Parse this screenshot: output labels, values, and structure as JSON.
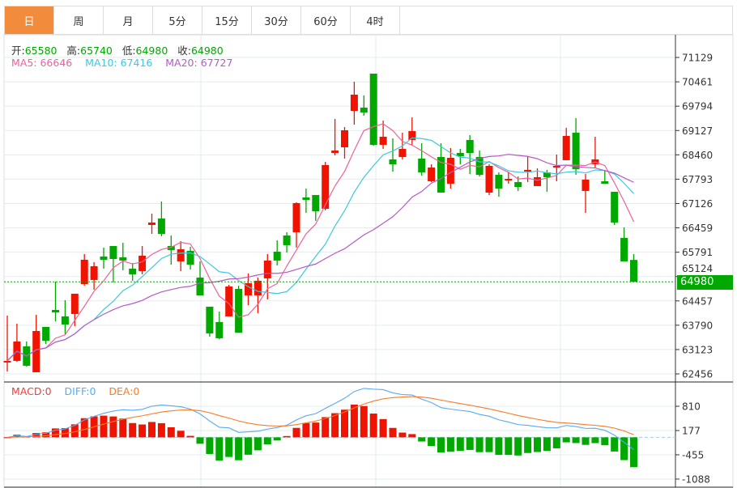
{
  "tabs": [
    {
      "label": "日",
      "active": true
    },
    {
      "label": "周"
    },
    {
      "label": "月"
    },
    {
      "label": "5分"
    },
    {
      "label": "15分"
    },
    {
      "label": "30分"
    },
    {
      "label": "60分"
    },
    {
      "label": "4时"
    }
  ],
  "ohlc": {
    "open_label": "开:",
    "open": "65580",
    "high_label": "高:",
    "high": "65740",
    "low_label": "低:",
    "low": "64980",
    "close_label": "收:",
    "close": "64980"
  },
  "ma": {
    "ma5": "MA5: 66646",
    "ma10": "MA10: 67416",
    "ma20": "MA20: 67727"
  },
  "macd_legend": {
    "macd": "MACD:0",
    "diff": "DIFF:0",
    "dea": "DEA:0"
  },
  "current_price": "64980",
  "colors": {
    "up": "#f01400",
    "down": "#00a800",
    "ma5": "#f0609a",
    "ma10": "#3cc8dc",
    "ma20": "#b45ac8",
    "diff": "#5aaaf0",
    "dea": "#f57c28",
    "accent": "#f28c3c"
  },
  "chart_data": {
    "type": "candlestick",
    "price_axis": {
      "ticks": [
        71129,
        70461,
        69794,
        69127,
        68460,
        67793,
        67126,
        66459,
        65791,
        65124,
        64457,
        63790,
        63123,
        62456
      ],
      "range": [
        62456,
        71129
      ]
    },
    "macd_axis": {
      "ticks": [
        810,
        177,
        -455,
        -1088
      ]
    },
    "candles": [
      [
        62790,
        62812,
        64054,
        62523
      ],
      [
        62812,
        63344,
        63832,
        62790
      ],
      [
        63211,
        62679,
        63344,
        62657
      ],
      [
        62501,
        63632,
        64076,
        62501
      ],
      [
        63743,
        63366,
        63743,
        63277
      ],
      [
        64209,
        64142,
        64985,
        63899
      ],
      [
        64032,
        63810,
        64475,
        63544
      ],
      [
        64098,
        64653,
        64653,
        63766
      ],
      [
        64919,
        65584,
        65739,
        64875
      ],
      [
        65030,
        65407,
        65518,
        64764
      ],
      [
        65673,
        65584,
        65917,
        65340
      ],
      [
        65961,
        65606,
        65961,
        64963
      ],
      [
        65651,
        65562,
        66050,
        65296
      ],
      [
        65340,
        65185,
        65496,
        65008
      ],
      [
        65274,
        65695,
        65961,
        65185
      ],
      [
        66538,
        66605,
        66848,
        66294
      ],
      [
        66715,
        66294,
        67181,
        66228
      ],
      [
        65961,
        65851,
        66250,
        65451
      ],
      [
        65540,
        65873,
        66094,
        65274
      ],
      [
        65829,
        65451,
        65939,
        65318
      ],
      [
        65096,
        64608,
        65540,
        64608
      ],
      [
        64298,
        63566,
        64298,
        63477
      ],
      [
        63876,
        63433,
        64165,
        63411
      ],
      [
        64032,
        64852,
        64897,
        64032
      ],
      [
        64786,
        63588,
        64875,
        63588
      ],
      [
        64608,
        64941,
        65207,
        64342
      ],
      [
        64608,
        65008,
        65096,
        64120
      ],
      [
        65074,
        65562,
        65739,
        64497
      ],
      [
        65806,
        65562,
        66117,
        65429
      ],
      [
        66250,
        65984,
        66338,
        65784
      ],
      [
        66338,
        67137,
        67159,
        65917
      ],
      [
        67292,
        67226,
        67536,
        66871
      ],
      [
        67359,
        66915,
        67359,
        66649
      ],
      [
        66982,
        68179,
        68268,
        66937
      ],
      [
        68512,
        68578,
        69444,
        68445
      ],
      [
        68667,
        69133,
        69222,
        68357
      ],
      [
        69665,
        70109,
        70464,
        69288
      ],
      [
        69754,
        69621,
        70087,
        69532
      ],
      [
        70686,
        68734,
        70686,
        68712
      ],
      [
        68734,
        68956,
        69399,
        68623
      ],
      [
        68335,
        68201,
        68911,
        67997
      ],
      [
        68401,
        68623,
        69066,
        68335
      ],
      [
        68867,
        69111,
        69488,
        68734
      ],
      [
        68357,
        67980,
        68778,
        67891
      ],
      [
        67736,
        68113,
        68202,
        67714
      ],
      [
        68401,
        67425,
        68778,
        67425
      ],
      [
        67669,
        68379,
        68645,
        67536
      ],
      [
        68512,
        68423,
        68623,
        68202
      ],
      [
        68867,
        68512,
        69000,
        67935
      ],
      [
        68401,
        67913,
        68578,
        67869
      ],
      [
        67425,
        68157,
        68202,
        67359
      ],
      [
        67913,
        67536,
        67980,
        67314
      ],
      [
        67758,
        67802,
        67980,
        67669
      ],
      [
        67714,
        67580,
        67869,
        67470
      ],
      [
        68002,
        68047,
        68423,
        67714
      ],
      [
        67603,
        67847,
        68091,
        67603
      ],
      [
        67980,
        67847,
        68047,
        67448
      ],
      [
        68113,
        68157,
        68468,
        67736
      ],
      [
        68313,
        68978,
        69200,
        68313
      ],
      [
        69066,
        68069,
        69466,
        67913
      ],
      [
        67470,
        67780,
        67936,
        66871
      ],
      [
        68202,
        68335,
        68956,
        68113
      ],
      [
        67736,
        67669,
        68047,
        67669
      ],
      [
        67448,
        66605,
        67448,
        66538
      ],
      [
        66183,
        65540,
        66472,
        65540
      ],
      [
        65580,
        64980,
        65740,
        64980
      ]
    ],
    "candle_format": [
      "open",
      "close",
      "high",
      "low"
    ],
    "indicators": [
      "MA5",
      "MA10",
      "MA20",
      "MACD(12,26,9)"
    ]
  }
}
